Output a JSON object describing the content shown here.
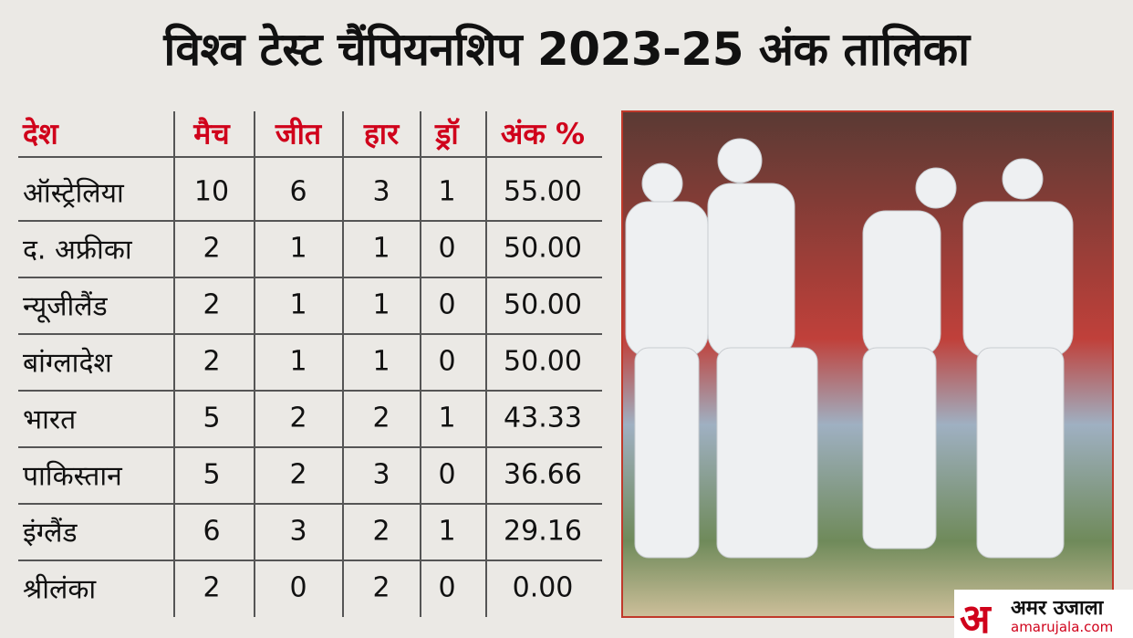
{
  "title": "विश्व टेस्ट चैंपियनशिप 2023-25 अंक तालिका",
  "table": {
    "header": [
      "देश",
      "मैच",
      "जीत",
      "हार",
      "ड्रॉ",
      "अंक %"
    ],
    "rows": [
      [
        "ऑस्ट्रेलिया",
        "10",
        "6",
        "3",
        "1",
        "55.00"
      ],
      [
        "द. अफ्रीका",
        "2",
        "1",
        "1",
        "0",
        "50.00"
      ],
      [
        "न्यूजीलैंड",
        "2",
        "1",
        "1",
        "0",
        "50.00"
      ],
      [
        "बांग्लादेश",
        "2",
        "1",
        "1",
        "0",
        "50.00"
      ],
      [
        "भारत",
        "5",
        "2",
        "2",
        "1",
        "43.33"
      ],
      [
        "पाकिस्तान",
        "5",
        "2",
        "3",
        "0",
        "36.66"
      ],
      [
        "इंग्लैंड",
        "6",
        "3",
        "2",
        "1",
        "29.16"
      ],
      [
        "श्रीलंका",
        "2",
        "0",
        "2",
        "0",
        "0.00"
      ]
    ]
  },
  "logo": {
    "mark": "अ",
    "name": "अमर उजाला",
    "url": "amarujala.com"
  }
}
